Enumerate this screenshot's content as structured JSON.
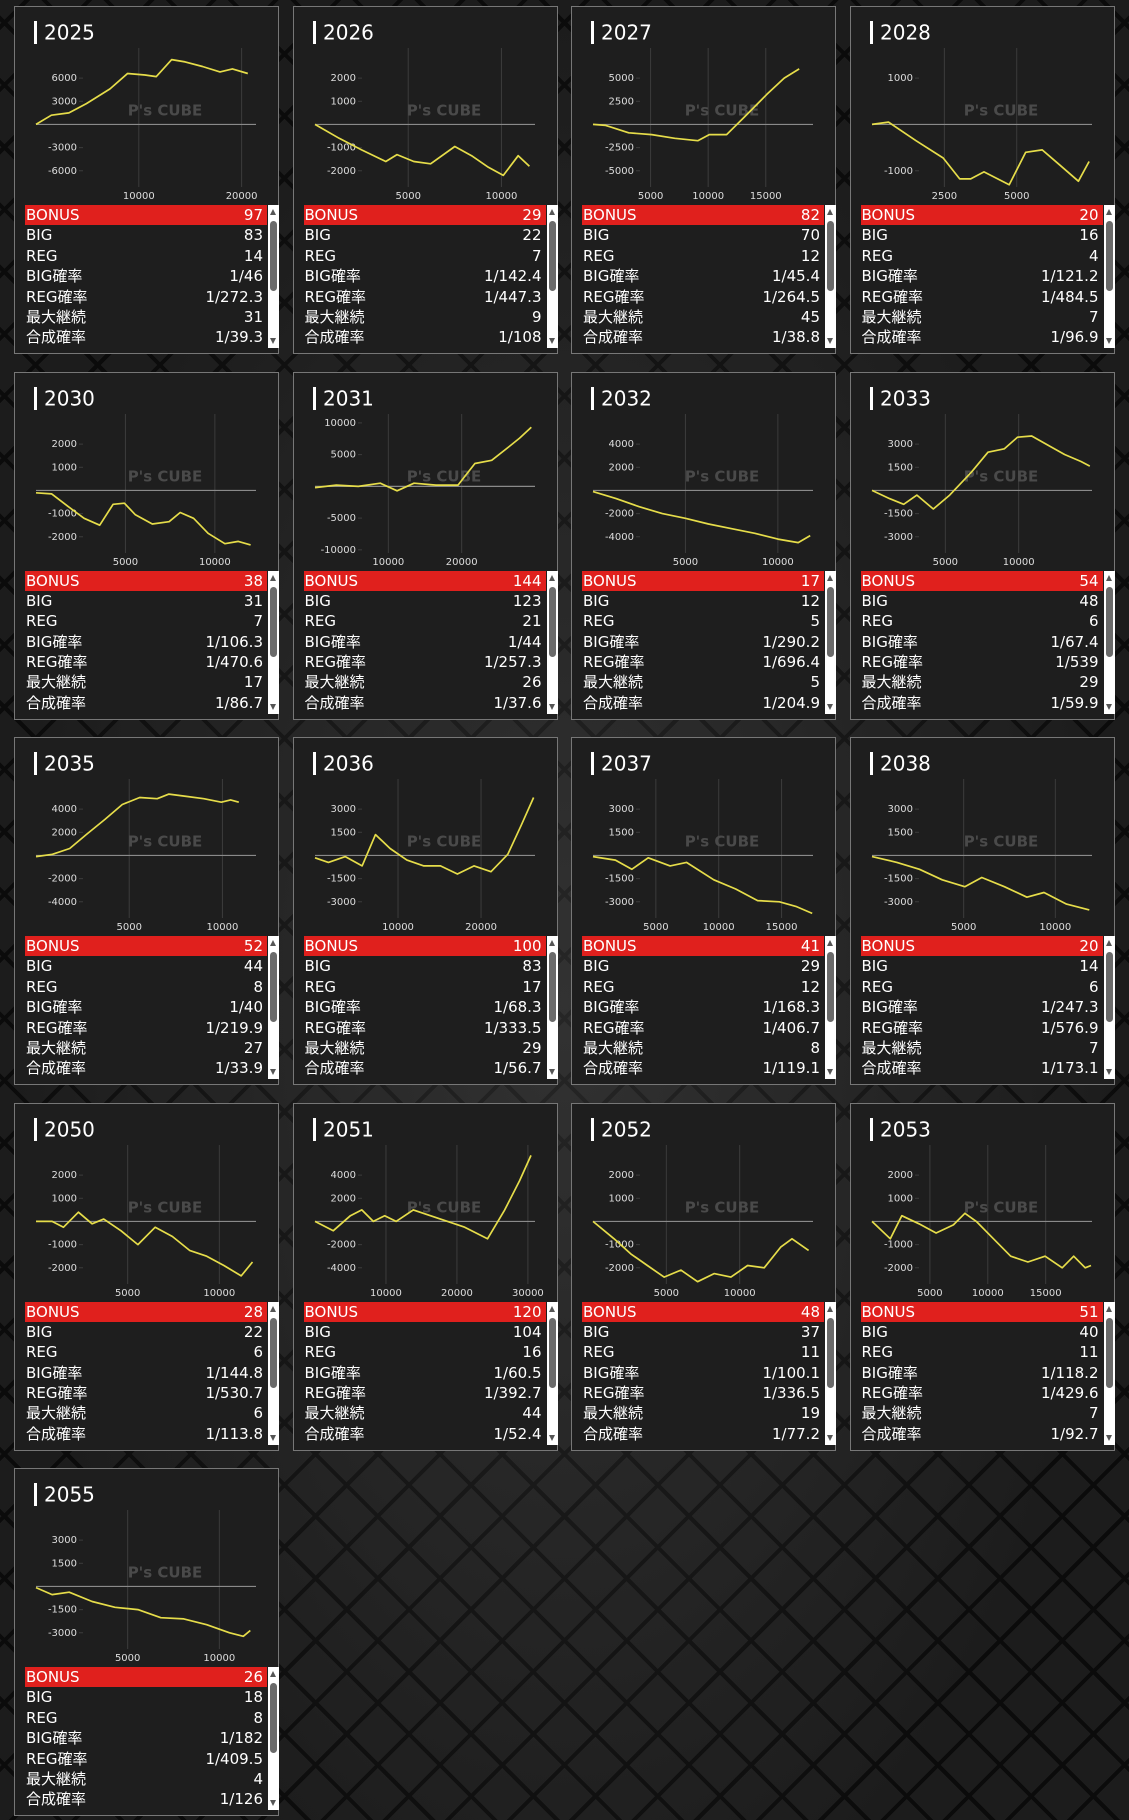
{
  "watermark": "P's CUBE",
  "stat_labels": [
    "BONUS",
    "BIG",
    "REG",
    "BIG確率",
    "REG確率",
    "最大継続",
    "合成確率"
  ],
  "machines": [
    {
      "title": "2025",
      "stats": [
        97,
        83,
        14,
        "1/46",
        "1/272.3",
        31,
        "1/39.3"
      ],
      "chart_data": {
        "type": "line",
        "color": "#e6dd4a",
        "xlim": [
          0,
          21400
        ],
        "ylim": [
          -8100,
          9900
        ],
        "xticks": [
          10000,
          20000
        ],
        "yticks": [
          -6000,
          -3000,
          3000,
          6000
        ],
        "x": [
          0,
          1500,
          3200,
          4900,
          7200,
          8900,
          10600,
          11700,
          13200,
          14500,
          16200,
          17900,
          19100,
          20600
        ],
        "values": [
          0,
          1200,
          1500,
          2700,
          4600,
          6600,
          6400,
          6200,
          8400,
          8100,
          7500,
          6800,
          7200,
          6600
        ]
      }
    },
    {
      "title": "2026",
      "stats": [
        29,
        22,
        7,
        "1/142.4",
        "1/447.3",
        9,
        "1/108"
      ],
      "chart_data": {
        "type": "line",
        "color": "#e6dd4a",
        "xlim": [
          0,
          11800
        ],
        "ylim": [
          -2700,
          3300
        ],
        "xticks": [
          5000,
          10000
        ],
        "yticks": [
          -2000,
          -1000,
          1000,
          2000
        ],
        "x": [
          0,
          1300,
          2500,
          3800,
          4400,
          5300,
          6200,
          7500,
          8400,
          9300,
          10100,
          10900,
          11500
        ],
        "values": [
          0,
          -600,
          -1100,
          -1600,
          -1300,
          -1600,
          -1700,
          -950,
          -1350,
          -1850,
          -2200,
          -1350,
          -1800
        ]
      }
    },
    {
      "title": "2027",
      "stats": [
        82,
        70,
        12,
        "1/45.4",
        "1/264.5",
        45,
        "1/38.8"
      ],
      "chart_data": {
        "type": "line",
        "color": "#e6dd4a",
        "xlim": [
          0,
          19100
        ],
        "ylim": [
          -6750,
          8250
        ],
        "xticks": [
          5000,
          10000,
          15000
        ],
        "yticks": [
          -5000,
          -2500,
          2500,
          5000
        ],
        "x": [
          0,
          1100,
          3100,
          5100,
          7100,
          9100,
          10100,
          11600,
          13100,
          15100,
          16600,
          17900
        ],
        "values": [
          0,
          -100,
          -900,
          -1100,
          -1500,
          -1750,
          -1100,
          -1100,
          750,
          3250,
          5000,
          6000
        ]
      }
    },
    {
      "title": "2028",
      "stats": [
        20,
        16,
        4,
        "1/121.2",
        "1/484.5",
        7,
        "1/96.9"
      ],
      "chart_data": {
        "type": "line",
        "color": "#e6dd4a",
        "xlim": [
          0,
          7600
        ],
        "ylim": [
          -1350,
          1650
        ],
        "xticks": [
          2500,
          5000
        ],
        "yticks": [
          -1000,
          1000
        ],
        "x": [
          0,
          570,
          1520,
          2460,
          3030,
          3410,
          3870,
          4740,
          5310,
          5880,
          6440,
          7130,
          7500
        ],
        "values": [
          0,
          50,
          -350,
          -725,
          -1175,
          -1175,
          -1025,
          -1300,
          -600,
          -550,
          -850,
          -1225,
          -800
        ]
      }
    },
    {
      "title": "2030",
      "stats": [
        38,
        31,
        7,
        "1/106.3",
        "1/470.6",
        17,
        "1/86.7"
      ],
      "chart_data": {
        "type": "line",
        "color": "#e6dd4a",
        "xlim": [
          0,
          12300
        ],
        "ylim": [
          -2700,
          3300
        ],
        "xticks": [
          5000,
          10000
        ],
        "yticks": [
          -2000,
          -1000,
          1000,
          2000
        ],
        "x": [
          0,
          880,
          1810,
          2690,
          3560,
          4310,
          4940,
          5560,
          6500,
          7440,
          8060,
          8810,
          9620,
          10560,
          11310,
          12000
        ],
        "values": [
          -100,
          -150,
          -700,
          -1200,
          -1500,
          -600,
          -550,
          -1050,
          -1450,
          -1350,
          -950,
          -1200,
          -1850,
          -2300,
          -2200,
          -2350
        ]
      }
    },
    {
      "title": "2031",
      "stats": [
        144,
        123,
        21,
        "1/44",
        "1/257.3",
        26,
        "1/37.6"
      ],
      "chart_data": {
        "type": "line",
        "color": "#e6dd4a",
        "xlim": [
          0,
          30000
        ],
        "ylim": [
          -10500,
          11400
        ],
        "xticks": [
          10000,
          20000
        ],
        "yticks": [
          -10000,
          -5000,
          5000,
          10000
        ],
        "x": [
          0,
          2900,
          5900,
          8900,
          11200,
          13500,
          16500,
          19500,
          21800,
          24100,
          26400,
          27900,
          29500
        ],
        "values": [
          -200,
          200,
          0,
          500,
          -700,
          500,
          200,
          200,
          3600,
          4100,
          6200,
          7600,
          9300
        ]
      }
    },
    {
      "title": "2032",
      "stats": [
        17,
        12,
        5,
        "1/290.2",
        "1/696.4",
        5,
        "1/204.9"
      ],
      "chart_data": {
        "type": "line",
        "color": "#e6dd4a",
        "xlim": [
          0,
          11900
        ],
        "ylim": [
          -5400,
          6600
        ],
        "xticks": [
          5000,
          10000
        ],
        "yticks": [
          -4000,
          -2000,
          2000,
          4000
        ],
        "x": [
          0,
          1250,
          2500,
          3750,
          5000,
          6250,
          7500,
          8750,
          10000,
          11100,
          11750
        ],
        "values": [
          -100,
          -700,
          -1400,
          -2000,
          -2400,
          -2900,
          -3300,
          -3700,
          -4200,
          -4500,
          -3900
        ]
      }
    },
    {
      "title": "2033",
      "stats": [
        54,
        48,
        6,
        "1/67.4",
        "1/539",
        29,
        "1/59.9"
      ],
      "chart_data": {
        "type": "line",
        "color": "#e6dd4a",
        "xlim": [
          0,
          15000
        ],
        "ylim": [
          -4050,
          4950
        ],
        "xticks": [
          5000,
          10000
        ],
        "yticks": [
          -3000,
          -1500,
          1500,
          3000
        ],
        "x": [
          0,
          1190,
          2160,
          3060,
          4180,
          5300,
          6790,
          7910,
          9030,
          9920,
          10890,
          12010,
          13130,
          14250,
          14850
        ],
        "values": [
          0,
          -525,
          -900,
          -300,
          -1200,
          -300,
          1200,
          2475,
          2700,
          3450,
          3525,
          2925,
          2325,
          1875,
          1575
        ]
      }
    },
    {
      "title": "2035",
      "stats": [
        52,
        44,
        8,
        "1/40",
        "1/219.9",
        27,
        "1/33.9"
      ],
      "chart_data": {
        "type": "line",
        "color": "#e6dd4a",
        "xlim": [
          0,
          11800
        ],
        "ylim": [
          -5400,
          6600
        ],
        "xticks": [
          5000,
          10000
        ],
        "yticks": [
          -4000,
          -2000,
          2000,
          4000
        ],
        "x": [
          0,
          880,
          1810,
          2690,
          3690,
          4630,
          5560,
          6500,
          7130,
          8060,
          9000,
          9940,
          10440,
          10880
        ],
        "values": [
          -100,
          100,
          600,
          1800,
          3100,
          4400,
          5000,
          4900,
          5300,
          5100,
          4900,
          4600,
          4800,
          4600
        ]
      }
    },
    {
      "title": "2036",
      "stats": [
        100,
        83,
        17,
        "1/68.3",
        "1/333.5",
        29,
        "1/56.7"
      ],
      "chart_data": {
        "type": "line",
        "color": "#e6dd4a",
        "xlim": [
          0,
          26500
        ],
        "ylim": [
          -4050,
          4950
        ],
        "xticks": [
          10000,
          20000
        ],
        "yticks": [
          -3000,
          -1500,
          1500,
          3000
        ],
        "x": [
          0,
          1620,
          3650,
          5670,
          7290,
          9050,
          11070,
          13100,
          15120,
          17150,
          19170,
          21200,
          23220,
          24840,
          26330
        ],
        "values": [
          -150,
          -450,
          -75,
          -675,
          1350,
          450,
          -300,
          -675,
          -675,
          -1200,
          -675,
          -1050,
          75,
          1950,
          3750
        ]
      }
    },
    {
      "title": "2037",
      "stats": [
        41,
        29,
        12,
        "1/168.3",
        "1/406.7",
        8,
        "1/119.1"
      ],
      "chart_data": {
        "type": "line",
        "color": "#e6dd4a",
        "xlim": [
          0,
          17500
        ],
        "ylim": [
          -4050,
          4950
        ],
        "xticks": [
          5000,
          10000,
          15000
        ],
        "yticks": [
          -3000,
          -1500,
          1500,
          3000
        ],
        "x": [
          0,
          1780,
          3090,
          4390,
          6130,
          7440,
          9610,
          11350,
          13090,
          14830,
          16140,
          17440
        ],
        "values": [
          -75,
          -300,
          -900,
          -150,
          -675,
          -450,
          -1575,
          -2175,
          -2925,
          -3000,
          -3300,
          -3750
        ]
      }
    },
    {
      "title": "2038",
      "stats": [
        20,
        14,
        6,
        "1/247.3",
        "1/576.9",
        7,
        "1/173.1"
      ],
      "chart_data": {
        "type": "line",
        "color": "#e6dd4a",
        "xlim": [
          0,
          12000
        ],
        "ylim": [
          -4050,
          4950
        ],
        "xticks": [
          5000,
          10000
        ],
        "yticks": [
          -3000,
          -1500,
          1500,
          3000
        ],
        "x": [
          0,
          1360,
          2590,
          3830,
          5060,
          5990,
          7220,
          8450,
          9380,
          10610,
          11850
        ],
        "values": [
          -75,
          -450,
          -900,
          -1575,
          -2025,
          -1425,
          -2025,
          -2700,
          -2400,
          -3150,
          -3525
        ]
      }
    },
    {
      "title": "2050",
      "stats": [
        28,
        22,
        6,
        "1/144.8",
        "1/530.7",
        6,
        "1/113.8"
      ],
      "chart_data": {
        "type": "line",
        "color": "#e6dd4a",
        "xlim": [
          0,
          12000
        ],
        "ylim": [
          -2700,
          3300
        ],
        "xticks": [
          5000,
          10000
        ],
        "yticks": [
          -2000,
          -1000,
          1000,
          2000
        ],
        "x": [
          0,
          880,
          1500,
          2310,
          3060,
          3690,
          4630,
          5560,
          6500,
          7440,
          8380,
          9310,
          10250,
          11190,
          11810
        ],
        "values": [
          0,
          0,
          -250,
          400,
          -100,
          100,
          -400,
          -1000,
          -250,
          -650,
          -1250,
          -1500,
          -1900,
          -2350,
          -1750
        ]
      }
    },
    {
      "title": "2051",
      "stats": [
        120,
        104,
        16,
        "1/60.5",
        "1/392.7",
        44,
        "1/52.4"
      ],
      "chart_data": {
        "type": "line",
        "color": "#e6dd4a",
        "xlim": [
          0,
          31000
        ],
        "ylim": [
          -5400,
          6600
        ],
        "xticks": [
          10000,
          20000,
          30000
        ],
        "yticks": [
          -4000,
          -2000,
          2000,
          4000
        ],
        "x": [
          0,
          2580,
          4990,
          6600,
          8210,
          9820,
          11430,
          13850,
          16260,
          18680,
          21090,
          24310,
          26730,
          28820,
          30430
        ],
        "values": [
          0,
          -800,
          500,
          1000,
          0,
          500,
          0,
          1000,
          500,
          0,
          -500,
          -1500,
          1000,
          3500,
          5700
        ]
      }
    },
    {
      "title": "2052",
      "stats": [
        48,
        37,
        11,
        "1/100.1",
        "1/336.5",
        19,
        "1/77.2"
      ],
      "chart_data": {
        "type": "line",
        "color": "#e6dd4a",
        "xlim": [
          0,
          15000
        ],
        "ylim": [
          -2700,
          3300
        ],
        "xticks": [
          5000,
          10000
        ],
        "yticks": [
          -2000,
          -1000,
          1000,
          2000
        ],
        "x": [
          0,
          1440,
          2580,
          3710,
          4850,
          5990,
          7130,
          8260,
          9400,
          10540,
          11670,
          12810,
          13570,
          14700
        ],
        "values": [
          0,
          -750,
          -1400,
          -1900,
          -2400,
          -2100,
          -2600,
          -2250,
          -2400,
          -1900,
          -2000,
          -1100,
          -750,
          -1250
        ]
      }
    },
    {
      "title": "2053",
      "stats": [
        51,
        40,
        11,
        "1/118.2",
        "1/429.6",
        7,
        "1/92.7"
      ],
      "chart_data": {
        "type": "line",
        "color": "#e6dd4a",
        "xlim": [
          0,
          19000
        ],
        "ylim": [
          -2700,
          3300
        ],
        "xticks": [
          5000,
          10000,
          15000
        ],
        "yticks": [
          -2000,
          -1000,
          1000,
          2000
        ],
        "x": [
          0,
          1580,
          2570,
          4060,
          5540,
          7030,
          8020,
          9010,
          10490,
          11980,
          13460,
          14950,
          16430,
          17420,
          18410,
          18910
        ],
        "values": [
          0,
          -750,
          250,
          -100,
          -500,
          -150,
          350,
          0,
          -750,
          -1500,
          -1750,
          -1500,
          -2000,
          -1500,
          -2000,
          -1900
        ]
      }
    },
    {
      "title": "2055",
      "stats": [
        26,
        18,
        8,
        "1/182",
        "1/409.5",
        4,
        "1/126"
      ],
      "chart_data": {
        "type": "line",
        "color": "#e6dd4a",
        "xlim": [
          0,
          12000
        ],
        "ylim": [
          -4050,
          4950
        ],
        "xticks": [
          5000,
          10000
        ],
        "yticks": [
          -3000,
          -1500,
          1500,
          3000
        ],
        "x": [
          0,
          880,
          1810,
          3060,
          4310,
          5560,
          6810,
          8060,
          9310,
          10560,
          11310,
          11690
        ],
        "values": [
          -75,
          -525,
          -375,
          -975,
          -1350,
          -1500,
          -2025,
          -2100,
          -2475,
          -3000,
          -3225,
          -2850
        ]
      }
    }
  ]
}
